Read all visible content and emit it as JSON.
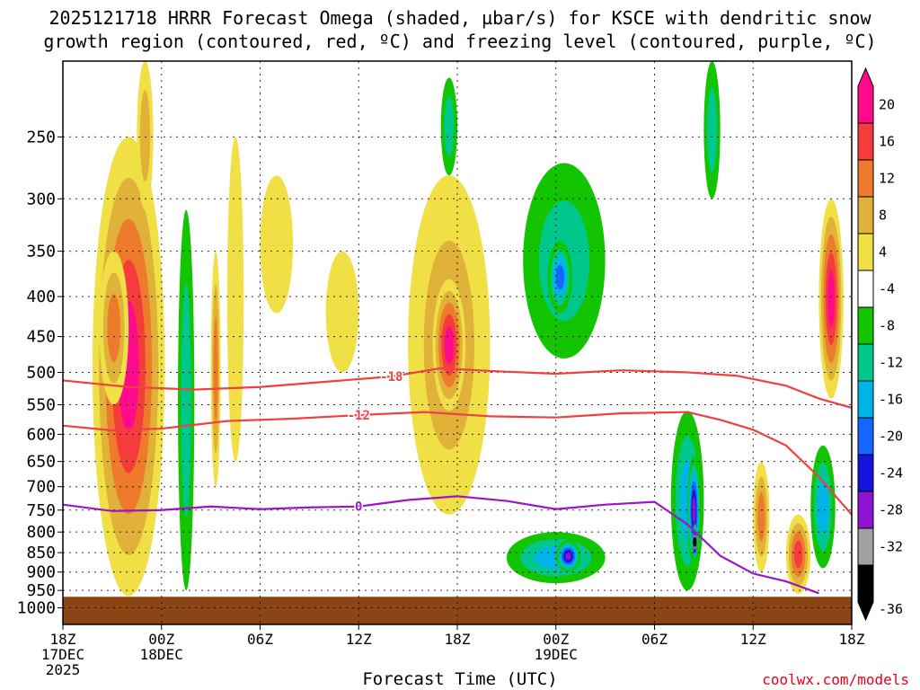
{
  "title": {
    "line1": "2025121718 HRRR Forecast Omega (shaded, µbar/s) for KSCE with dendritic snow",
    "line2": "growth region (contoured, red, ºC) and freezing level (contoured, purple, ºC)"
  },
  "chart_data": {
    "type": "heatmap",
    "xlabel": "Forecast Time (UTC)",
    "ylabel": "",
    "x_ticks": [
      {
        "hour": 0,
        "lines": [
          "18Z",
          "17DEC",
          "2025"
        ]
      },
      {
        "hour": 6,
        "lines": [
          "00Z",
          "18DEC"
        ]
      },
      {
        "hour": 12,
        "lines": [
          "06Z"
        ]
      },
      {
        "hour": 18,
        "lines": [
          "12Z"
        ]
      },
      {
        "hour": 24,
        "lines": [
          "18Z"
        ]
      },
      {
        "hour": 30,
        "lines": [
          "00Z",
          "19DEC"
        ]
      },
      {
        "hour": 36,
        "lines": [
          "06Z"
        ]
      },
      {
        "hour": 42,
        "lines": [
          "12Z"
        ]
      },
      {
        "hour": 48,
        "lines": [
          "18Z"
        ]
      }
    ],
    "y_ticks": [
      250,
      300,
      350,
      400,
      450,
      500,
      550,
      600,
      650,
      700,
      750,
      800,
      850,
      900,
      950,
      1000
    ],
    "ylim": [
      1000,
      200
    ],
    "colorbar": {
      "labels": [
        "20",
        "16",
        "12",
        "8",
        "4",
        "-4",
        "-8",
        "-12",
        "-16",
        "-20",
        "-24",
        "-28",
        "-32",
        "-36"
      ],
      "colors": [
        "#ff0a8c",
        "#f53c3c",
        "#ee7b2c",
        "#e0b23a",
        "#f0e046",
        "#ffffff",
        "#13c400",
        "#00c88c",
        "#00b4e6",
        "#1466ff",
        "#1414dc",
        "#8c14d2",
        "#a0a0a0",
        "#000000"
      ]
    },
    "dgz_contours": [
      {
        "label": "-18",
        "points": [
          [
            0,
            512
          ],
          [
            4,
            522
          ],
          [
            8,
            526
          ],
          [
            12,
            522
          ],
          [
            16,
            514
          ],
          [
            20,
            506
          ],
          [
            23,
            494
          ],
          [
            26,
            498
          ],
          [
            30,
            502
          ],
          [
            34,
            497
          ],
          [
            38,
            500
          ],
          [
            41,
            505
          ],
          [
            44,
            520
          ],
          [
            46,
            540
          ],
          [
            48,
            555
          ]
        ]
      },
      {
        "label": "-12",
        "points": [
          [
            0,
            585
          ],
          [
            3,
            593
          ],
          [
            6,
            590
          ],
          [
            10,
            577
          ],
          [
            14,
            573
          ],
          [
            18,
            567
          ],
          [
            22,
            562
          ],
          [
            26,
            569
          ],
          [
            30,
            571
          ],
          [
            34,
            564
          ],
          [
            38,
            562
          ],
          [
            40,
            575
          ],
          [
            42,
            592
          ],
          [
            44,
            620
          ],
          [
            46,
            680
          ],
          [
            48,
            760
          ]
        ]
      }
    ],
    "freezing_level": {
      "label": "0",
      "points": [
        [
          0,
          738
        ],
        [
          3,
          752
        ],
        [
          6,
          750
        ],
        [
          9,
          742
        ],
        [
          12,
          748
        ],
        [
          15,
          744
        ],
        [
          18,
          742
        ],
        [
          21,
          728
        ],
        [
          24,
          720
        ],
        [
          27,
          730
        ],
        [
          30,
          748
        ],
        [
          33,
          738
        ],
        [
          36,
          732
        ],
        [
          38,
          782
        ],
        [
          40,
          858
        ],
        [
          42,
          904
        ],
        [
          44,
          925
        ],
        [
          46,
          958
        ]
      ]
    },
    "terrain_pressure": 968,
    "omega_regions": [
      {
        "t0": 1.8,
        "t1": 6.2,
        "p0": 250,
        "p1": 966,
        "v": 20
      },
      {
        "t0": 2.2,
        "t1": 4.0,
        "p0": 350,
        "p1": 550,
        "v": 14
      },
      {
        "t0": 4.5,
        "t1": 5.5,
        "p0": 200,
        "p1": 310,
        "v": 8
      },
      {
        "t0": 7.0,
        "t1": 8.0,
        "p0": 310,
        "p1": 950,
        "v": -10
      },
      {
        "t0": 9.0,
        "t1": 9.6,
        "p0": 350,
        "p1": 700,
        "v": 14
      },
      {
        "t0": 10.0,
        "t1": 11.0,
        "p0": 250,
        "p1": 650,
        "v": 6
      },
      {
        "t0": 12.0,
        "t1": 14.0,
        "p0": 280,
        "p1": 420,
        "v": 6
      },
      {
        "t0": 16.0,
        "t1": 18.0,
        "p0": 350,
        "p1": 500,
        "v": 5
      },
      {
        "t0": 21.0,
        "t1": 26.0,
        "p0": 280,
        "p1": 760,
        "v": 10
      },
      {
        "t0": 22.5,
        "t1": 24.5,
        "p0": 380,
        "p1": 560,
        "v": 20
      },
      {
        "t0": 23.0,
        "t1": 24.0,
        "p0": 210,
        "p1": 280,
        "v": -8
      },
      {
        "t0": 28.0,
        "t1": 33.0,
        "p0": 270,
        "p1": 480,
        "v": -10
      },
      {
        "t0": 29.5,
        "t1": 31.0,
        "p0": 340,
        "p1": 420,
        "v": -16
      },
      {
        "t0": 27.0,
        "t1": 33.0,
        "p0": 800,
        "p1": 930,
        "v": -12
      },
      {
        "t0": 30.0,
        "t1": 31.5,
        "p0": 820,
        "p1": 900,
        "v": -26
      },
      {
        "t0": 37.0,
        "t1": 39.0,
        "p0": 560,
        "p1": 950,
        "v": -14
      },
      {
        "t0": 38.0,
        "t1": 38.8,
        "p0": 640,
        "p1": 880,
        "v": -24
      },
      {
        "t0": 38.3,
        "t1": 38.6,
        "p0": 780,
        "p1": 870,
        "v": -38
      },
      {
        "t0": 39.0,
        "t1": 40.0,
        "p0": 200,
        "p1": 300,
        "v": -8
      },
      {
        "t0": 42.0,
        "t1": 43.0,
        "p0": 650,
        "p1": 900,
        "v": 14
      },
      {
        "t0": 46.0,
        "t1": 47.5,
        "p0": 300,
        "p1": 540,
        "v": 20
      },
      {
        "t0": 45.5,
        "t1": 47.0,
        "p0": 620,
        "p1": 890,
        "v": -14
      },
      {
        "t0": 44.0,
        "t1": 45.5,
        "p0": 760,
        "p1": 960,
        "v": 18
      }
    ]
  },
  "credit": "coolwx.com/models"
}
